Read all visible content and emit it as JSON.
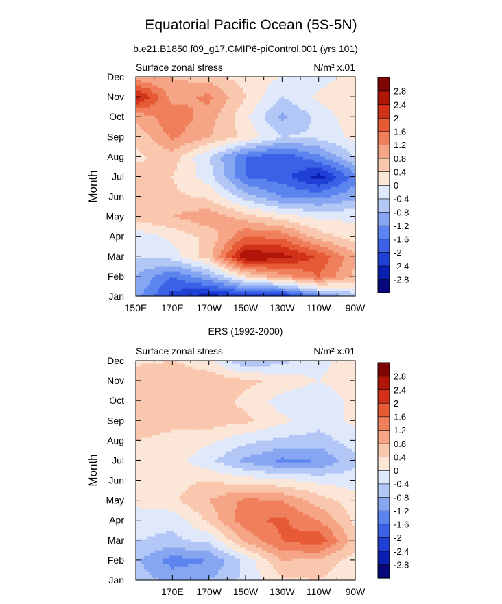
{
  "figure": {
    "title": "Equatorial Pacific Ocean (5S-5N)",
    "subtitle": "b.e21.B1850.f09_g17.CMIP6-piControl.001 (yrs 101)"
  },
  "chart_data": [
    {
      "type": "heatmap",
      "title": "b.e21.B1850.f09_g17.CMIP6-piControl.001 (yrs 101)",
      "left_label": "Surface zonal stress",
      "units_label": "N/m² x.01",
      "xlabel": "",
      "ylabel": "Month",
      "x_tick_labels": [
        "150E",
        "170E",
        "170W",
        "150W",
        "130W",
        "110W",
        "90W"
      ],
      "y_tick_labels": [
        "Jan",
        "Feb",
        "Mar",
        "Apr",
        "May",
        "Jun",
        "Jul",
        "Aug",
        "Sep",
        "Oct",
        "Nov",
        "Dec"
      ],
      "colorbar_ticks": [
        "2.8",
        "2.4",
        "2",
        "1.6",
        "1.2",
        "0.8",
        "0.4",
        "0",
        "-0.4",
        "-0.8",
        "-1.2",
        "-1.6",
        "-2",
        "-2.4",
        "-2.8"
      ],
      "x_longitudes": [
        150,
        170,
        190,
        210,
        230,
        250,
        270
      ],
      "values_by_month": [
        [
          -1.0,
          -2.2,
          -2.6,
          -2.3,
          -2.4,
          -1.4,
          -0.6
        ],
        [
          -0.8,
          -1.6,
          -0.9,
          0.3,
          1.0,
          1.6,
          0.7
        ],
        [
          -0.4,
          -0.2,
          0.6,
          2.8,
          2.6,
          1.9,
          0.9
        ],
        [
          -0.3,
          0.1,
          0.5,
          1.6,
          1.5,
          0.6,
          0.2
        ],
        [
          0.6,
          0.8,
          1.1,
          0.6,
          0.2,
          -0.1,
          -0.1
        ],
        [
          0.8,
          0.5,
          0.3,
          -0.6,
          -1.2,
          -1.3,
          -0.9
        ],
        [
          0.6,
          0.4,
          -0.2,
          -1.6,
          -1.8,
          -2.6,
          -1.4
        ],
        [
          0.3,
          0.6,
          -0.4,
          -1.6,
          -1.9,
          -1.3,
          -0.4
        ],
        [
          0.5,
          1.3,
          0.8,
          0.3,
          -0.4,
          -0.3,
          0.1
        ],
        [
          0.9,
          1.5,
          1.0,
          0.1,
          -0.9,
          -0.3,
          0.3
        ],
        [
          2.6,
          1.0,
          1.3,
          0.4,
          -0.4,
          0.1,
          0.4
        ],
        [
          0.9,
          0.8,
          0.6,
          0.2,
          0.0,
          -0.2,
          0.2
        ]
      ]
    },
    {
      "type": "heatmap",
      "title": "ERS (1992-2000)",
      "left_label": "Surface zonal stress",
      "units_label": "N/m² x.01",
      "xlabel": "",
      "ylabel": "Month",
      "x_tick_labels": [
        "170E",
        "170W",
        "150W",
        "130W",
        "110W",
        "90W"
      ],
      "y_tick_labels": [
        "Jan",
        "Feb",
        "Mar",
        "Apr",
        "May",
        "Jun",
        "Jul",
        "Aug",
        "Sep",
        "Oct",
        "Nov",
        "Dec"
      ],
      "colorbar_ticks": [
        "2.8",
        "2.4",
        "2",
        "1.6",
        "1.2",
        "0.8",
        "0.4",
        "0",
        "-0.4",
        "-0.8",
        "-1.2",
        "-1.6",
        "-2",
        "-2.4",
        "-2.8"
      ],
      "x_longitudes": [
        150,
        170,
        190,
        210,
        230,
        250,
        270
      ],
      "values_by_month": [
        [
          -0.6,
          -0.9,
          -0.8,
          -0.3,
          0.3,
          0.4,
          0.0
        ],
        [
          -0.7,
          -1.4,
          -1.2,
          -0.3,
          0.8,
          0.7,
          0.2
        ],
        [
          -0.4,
          -0.5,
          -0.3,
          0.9,
          1.6,
          1.9,
          0.6
        ],
        [
          -0.2,
          -0.3,
          0.5,
          1.5,
          1.7,
          1.2,
          0.3
        ],
        [
          0.1,
          0.3,
          0.8,
          1.3,
          1.2,
          0.6,
          0.2
        ],
        [
          0.2,
          0.3,
          0.4,
          0.2,
          0.1,
          -0.1,
          -0.2
        ],
        [
          0.3,
          0.2,
          -0.3,
          -0.9,
          -1.3,
          -1.2,
          -0.5
        ],
        [
          0.4,
          0.3,
          0.1,
          -0.3,
          -0.5,
          -0.6,
          -0.2
        ],
        [
          0.6,
          0.5,
          0.6,
          0.5,
          0.1,
          -0.2,
          0.1
        ],
        [
          0.5,
          0.6,
          0.6,
          0.3,
          -0.2,
          -0.4,
          0.2
        ],
        [
          0.7,
          0.8,
          0.7,
          0.5,
          0.3,
          0.0,
          0.3
        ],
        [
          0.3,
          0.4,
          0.1,
          -0.8,
          -0.5,
          -0.2,
          0.4
        ]
      ]
    }
  ],
  "colormap": {
    "levels": [
      -2.8,
      -2.4,
      -2.0,
      -1.6,
      -1.2,
      -0.8,
      -0.4,
      0.0,
      0.4,
      0.8,
      1.2,
      1.6,
      2.0,
      2.4,
      2.8
    ],
    "colors": [
      "#08087a",
      "#0a1fb0",
      "#1f3fd6",
      "#3b62e6",
      "#5b84ee",
      "#86a6f2",
      "#b3c7f6",
      "#dfe9fb",
      "#fbe6d8",
      "#f9c7ad",
      "#f5a585",
      "#f07f5c",
      "#e65a36",
      "#d13219",
      "#b0150a",
      "#7f0606"
    ]
  }
}
